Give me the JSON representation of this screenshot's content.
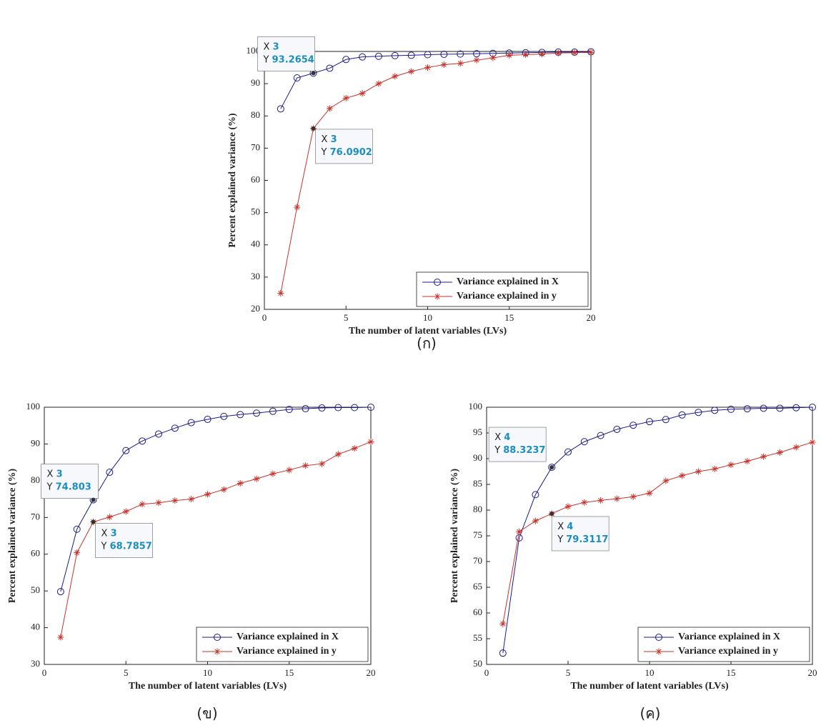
{
  "chart_data": [
    {
      "type": "line",
      "caption": "(ก)",
      "x_label": "The number of latent variables (LVs)",
      "y_label": "Percent explained variance (%)",
      "x": [
        1,
        2,
        3,
        4,
        5,
        6,
        7,
        8,
        9,
        10,
        11,
        12,
        13,
        14,
        15,
        16,
        17,
        18,
        19,
        20
      ],
      "xlim": [
        0,
        20
      ],
      "xticks": [
        0,
        5,
        10,
        15,
        20
      ],
      "ylim": [
        20,
        100
      ],
      "yticks": [
        20,
        30,
        40,
        50,
        60,
        70,
        80,
        90,
        100
      ],
      "legend": "southeast",
      "datatip_labels": [
        "X",
        "Y"
      ],
      "series": [
        {
          "name": "Variance explained in X",
          "color": "#1c1c8c",
          "marker": "circle",
          "values": [
            82.2,
            91.8,
            93.2654,
            94.8,
            97.5,
            98.3,
            98.5,
            98.7,
            98.8,
            99.0,
            99.1,
            99.2,
            99.3,
            99.4,
            99.5,
            99.6,
            99.7,
            99.8,
            99.8,
            99.9
          ]
        },
        {
          "name": "Variance explained in y",
          "color": "#c8322a",
          "marker": "star",
          "values": [
            25.0,
            51.7,
            76.0902,
            82.3,
            85.5,
            87.0,
            90.0,
            92.3,
            93.8,
            95.0,
            95.9,
            96.3,
            97.3,
            98.0,
            98.8,
            99.0,
            99.2,
            99.5,
            99.6,
            99.7
          ]
        }
      ],
      "datatips": [
        {
          "x": 3,
          "y": 93.2654
        },
        {
          "x": 3,
          "y": 76.0902
        }
      ]
    },
    {
      "type": "line",
      "caption": "(ข)",
      "x_label": "The number of latent variables (LVs)",
      "y_label": "Percent explained variance (%)",
      "x": [
        1,
        2,
        3,
        4,
        5,
        6,
        7,
        8,
        9,
        10,
        11,
        12,
        13,
        14,
        15,
        16,
        17,
        18,
        19,
        20
      ],
      "xlim": [
        0,
        20
      ],
      "xticks": [
        0,
        5,
        10,
        15,
        20
      ],
      "ylim": [
        30,
        100
      ],
      "yticks": [
        30,
        40,
        50,
        60,
        70,
        80,
        90,
        100
      ],
      "legend": "southeast",
      "datatip_labels": [
        "X",
        "Y"
      ],
      "series": [
        {
          "name": "Variance explained in X",
          "color": "#1c1c8c",
          "marker": "circle",
          "values": [
            49.8,
            66.8,
            74.803,
            82.3,
            88.2,
            90.8,
            92.7,
            94.3,
            95.8,
            96.7,
            97.5,
            98.0,
            98.4,
            98.9,
            99.4,
            99.6,
            99.8,
            99.9,
            99.9,
            100
          ]
        },
        {
          "name": "Variance explained in y",
          "color": "#c8322a",
          "marker": "star",
          "values": [
            37.4,
            60.4,
            68.7857,
            70.1,
            71.6,
            73.6,
            74.0,
            74.6,
            75.0,
            76.3,
            77.6,
            79.3,
            80.5,
            81.9,
            82.9,
            84.1,
            84.6,
            87.2,
            88.8,
            90.6
          ]
        }
      ],
      "datatips": [
        {
          "x": 3,
          "y": 74.803
        },
        {
          "x": 3,
          "y": 68.7857
        }
      ]
    },
    {
      "type": "line",
      "caption": "(ค)",
      "x_label": "The number of latent variables (LVs)",
      "y_label": "Percent explained variance (%)",
      "x": [
        1,
        2,
        3,
        4,
        5,
        6,
        7,
        8,
        9,
        10,
        11,
        12,
        13,
        14,
        15,
        16,
        17,
        18,
        19,
        20
      ],
      "xlim": [
        0,
        20
      ],
      "xticks": [
        0,
        5,
        10,
        15,
        20
      ],
      "ylim": [
        50,
        100
      ],
      "yticks": [
        50,
        55,
        60,
        65,
        70,
        75,
        80,
        85,
        90,
        95,
        100
      ],
      "legend": "southeast",
      "datatip_labels": [
        "X",
        "Y"
      ],
      "series": [
        {
          "name": "Variance explained in X",
          "color": "#1c1c8c",
          "marker": "circle",
          "values": [
            52.2,
            74.6,
            83.0,
            88.3237,
            91.3,
            93.3,
            94.5,
            95.7,
            96.5,
            97.2,
            97.6,
            98.5,
            99.0,
            99.4,
            99.6,
            99.7,
            99.8,
            99.8,
            99.9,
            100
          ]
        },
        {
          "name": "Variance explained in y",
          "color": "#c8322a",
          "marker": "star",
          "values": [
            57.9,
            75.8,
            77.9,
            79.3117,
            80.7,
            81.5,
            81.9,
            82.2,
            82.6,
            83.3,
            85.7,
            86.7,
            87.5,
            88.0,
            88.8,
            89.5,
            90.4,
            91.2,
            92.2,
            93.2
          ]
        }
      ],
      "datatips": [
        {
          "x": 4,
          "y": 88.3237
        },
        {
          "x": 4,
          "y": 79.3117
        }
      ]
    }
  ]
}
